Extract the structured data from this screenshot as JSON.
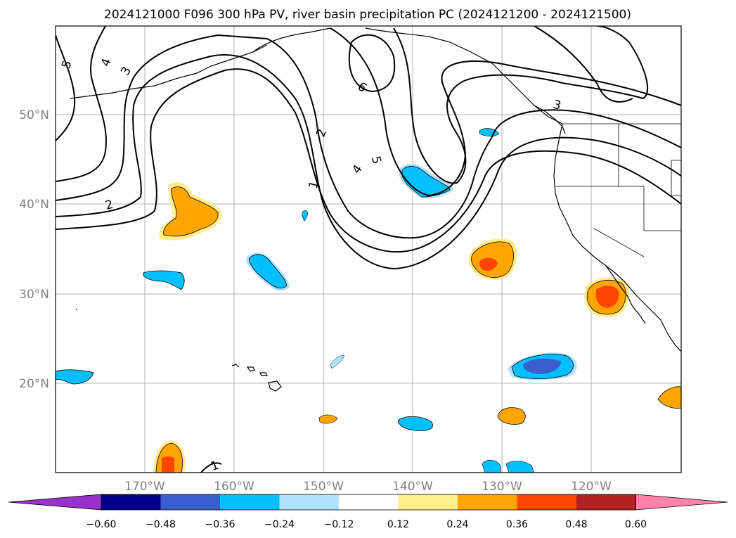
{
  "title": "2024121000 F096 300 hPa PV, river basin precipitation PC (2024121200 - 2024121500)",
  "map": {
    "lon_ticks": [
      "170°W",
      "160°W",
      "150°W",
      "140°W",
      "130°W",
      "120°W"
    ],
    "lat_ticks": [
      "50°N",
      "40°N",
      "30°N",
      "20°N"
    ],
    "extent": {
      "lon": [
        -180,
        -110
      ],
      "lat": [
        10,
        60
      ]
    },
    "grid": true,
    "pv_contour_labels": [
      "5",
      "4",
      "3",
      "2",
      "1",
      "2",
      "4",
      "5",
      "6",
      "3",
      "1"
    ]
  },
  "colorbar": {
    "ticks": [
      "−0.60",
      "−0.48",
      "−0.36",
      "−0.24",
      "−0.12",
      "0.12",
      "0.24",
      "0.36",
      "0.48",
      "0.60"
    ],
    "colors": [
      "#9932cc",
      "#00008b",
      "#3a5fcd",
      "#00bfff",
      "#b0e2ff",
      "#ffffff",
      "#ffec8b",
      "#ffa500",
      "#ff4500",
      "#b22222",
      "#ff82ab"
    ]
  }
}
